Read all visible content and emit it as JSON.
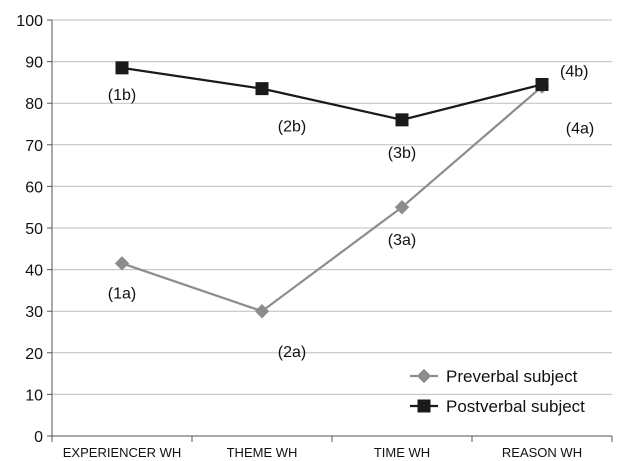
{
  "chart_data": {
    "type": "line",
    "categories": [
      "EXPERIENCER WH",
      "THEME WH",
      "TIME WH",
      "REASON WH"
    ],
    "ylim": [
      0,
      100
    ],
    "yticks": [
      0,
      10,
      20,
      30,
      40,
      50,
      60,
      70,
      80,
      90,
      100
    ],
    "grid": "horizontal",
    "legend_position": "bottom-right",
    "series": [
      {
        "name": "Preverbal subject",
        "values": [
          41.5,
          30,
          55,
          84
        ],
        "point_labels": [
          "(1a)",
          "(2a)",
          "(3a)",
          "(4a)"
        ],
        "color": "#8c8c8c",
        "marker": "diamond"
      },
      {
        "name": "Postverbal subject",
        "values": [
          88.5,
          83.5,
          76,
          84.5
        ],
        "point_labels": [
          "(1b)",
          "(2b)",
          "(3b)",
          "(4b)"
        ],
        "color": "#1a1a1a",
        "marker": "square"
      }
    ]
  }
}
